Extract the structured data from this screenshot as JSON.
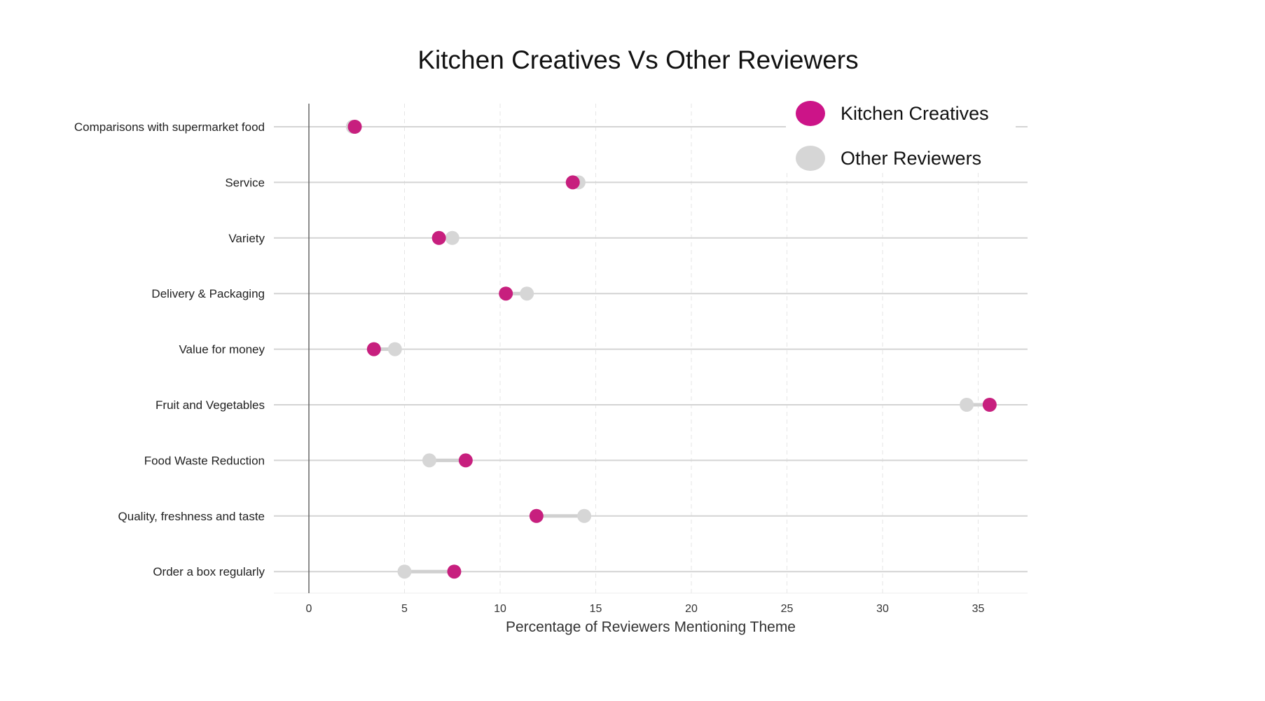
{
  "chart_data": {
    "type": "dumbbell",
    "title": "Kitchen Creatives Vs Other Reviewers",
    "xlabel": "Percentage of Reviewers Mentioning Theme",
    "ylabel": "",
    "xlim": [
      -1.8,
      37.4
    ],
    "xticks": [
      0,
      5,
      10,
      15,
      20,
      25,
      30,
      35
    ],
    "grid": true,
    "legend_position": "top-right",
    "colors": {
      "Kitchen Creatives": "#c71f7e",
      "Other Reviewers": "#d6d6d6",
      "legend_kc": "#cc1488"
    },
    "categories": [
      "Comparisons with supermarket food",
      "Service",
      "Variety",
      "Delivery & Packaging",
      "Value for money",
      "Fruit and Vegetables",
      "Food Waste Reduction",
      "Quality, freshness and taste",
      "Order a box regularly"
    ],
    "series": [
      {
        "name": "Kitchen Creatives",
        "values": [
          2.4,
          13.8,
          6.8,
          10.3,
          3.4,
          35.6,
          8.2,
          11.9,
          7.6
        ]
      },
      {
        "name": "Other Reviewers",
        "values": [
          2.3,
          14.1,
          7.5,
          11.4,
          4.5,
          34.4,
          6.3,
          14.4,
          5.0
        ]
      }
    ]
  }
}
